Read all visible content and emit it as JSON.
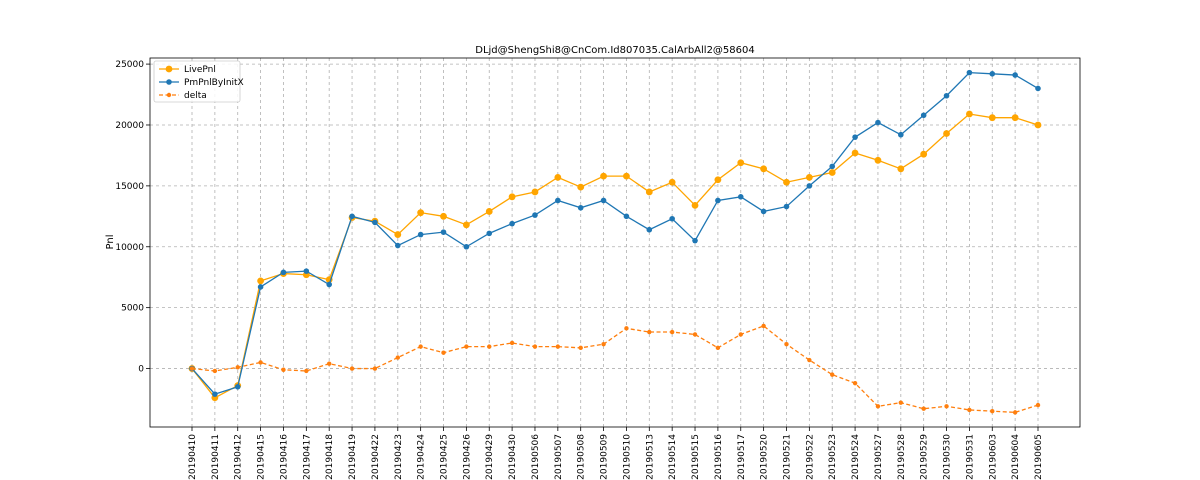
{
  "chart_data": {
    "type": "line",
    "title": "DLjd@ShengShi8@CnCom.Id807035.CalArbAll2@58604",
    "xlabel": "",
    "ylabel": "Pnl",
    "ylim": [
      -4800,
      25500
    ],
    "yticks": [
      0,
      5000,
      10000,
      15000,
      20000,
      25000
    ],
    "ytick_labels": [
      "0",
      "5000",
      "10000",
      "15000",
      "20000",
      "25000"
    ],
    "grid": true,
    "legend_position": "top-left",
    "categories": [
      "20190410",
      "20190411",
      "20190412",
      "20190415",
      "20190416",
      "20190417",
      "20190418",
      "20190419",
      "20190422",
      "20190423",
      "20190424",
      "20190425",
      "20190426",
      "20190429",
      "20190430",
      "20190506",
      "20190507",
      "20190508",
      "20190509",
      "20190510",
      "20190513",
      "20190514",
      "20190515",
      "20190516",
      "20190517",
      "20190520",
      "20190521",
      "20190522",
      "20190523",
      "20190524",
      "20190527",
      "20190528",
      "20190529",
      "20190530",
      "20190531",
      "20190603",
      "20190604",
      "20190605"
    ],
    "series": [
      {
        "name": "LivePnl",
        "color": "#ffa500",
        "style": "solid",
        "marker_size": 3.4,
        "values": [
          0,
          -2400,
          -1400,
          7200,
          7800,
          7700,
          7300,
          12400,
          12100,
          11000,
          12800,
          12500,
          11800,
          12900,
          14100,
          14500,
          15700,
          14900,
          15800,
          15800,
          14500,
          15300,
          13400,
          15500,
          16900,
          16400,
          15300,
          15700,
          16100,
          17700,
          17100,
          16400,
          17600,
          19300,
          20900,
          20600,
          20600,
          20000
        ]
      },
      {
        "name": "PmPnlByInitX",
        "color": "#1f77b4",
        "style": "solid",
        "marker_size": 2.8,
        "values": [
          0,
          -2100,
          -1500,
          6700,
          7900,
          8000,
          6900,
          12500,
          12000,
          10100,
          11000,
          11200,
          10000,
          11100,
          11900,
          12600,
          13800,
          13200,
          13800,
          12500,
          11400,
          12300,
          10500,
          13800,
          14100,
          12900,
          13300,
          15000,
          16600,
          19000,
          20200,
          19200,
          20800,
          22400,
          24300,
          24200,
          24100,
          23000
        ]
      },
      {
        "name": "delta",
        "color": "#ff7f0e",
        "style": "dashed",
        "marker_size": 2.2,
        "values": [
          0,
          -200,
          100,
          500,
          -100,
          -200,
          400,
          0,
          0,
          900,
          1800,
          1300,
          1800,
          1800,
          2100,
          1800,
          1800,
          1700,
          2000,
          3300,
          3000,
          3000,
          2800,
          1700,
          2800,
          3500,
          2000,
          700,
          -500,
          -1200,
          -3100,
          -2800,
          -3300,
          -3100,
          -3400,
          -3500,
          -3600,
          -3000
        ]
      }
    ]
  }
}
